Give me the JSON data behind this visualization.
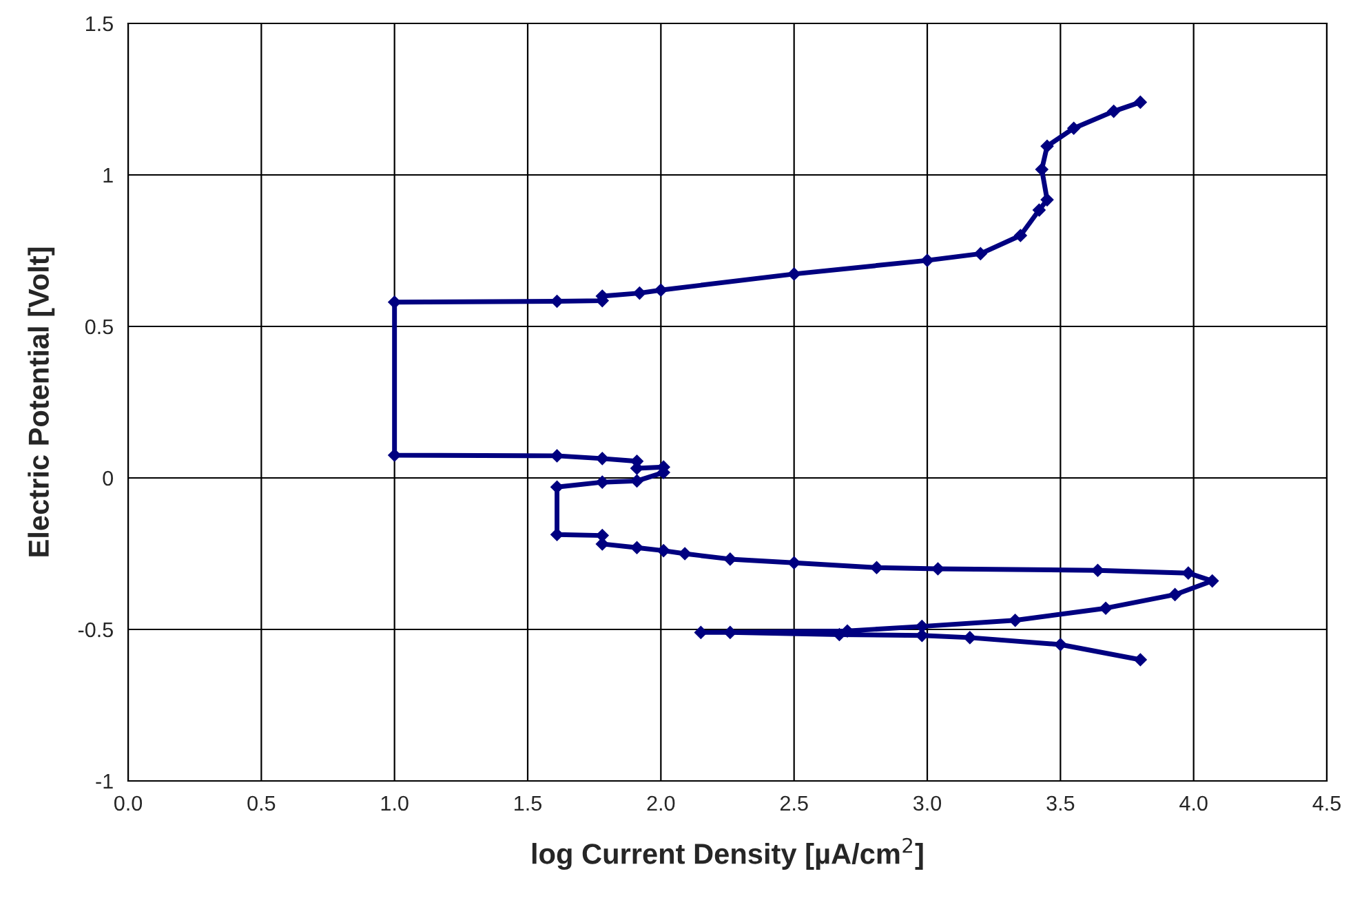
{
  "chart_data": {
    "type": "line",
    "xlabel": "log Current Density [µA/cm$^{2}$]",
    "ylabel": "Electric Potential [Volt]",
    "xlim": [
      0,
      4.5
    ],
    "xticks": [
      {
        "value": 0,
        "label": "0.0"
      },
      {
        "value": 0.5,
        "label": "0.5"
      },
      {
        "value": 1,
        "label": "1.0"
      },
      {
        "value": 1.5,
        "label": "1.5"
      },
      {
        "value": 2,
        "label": "2.0"
      },
      {
        "value": 2.5,
        "label": "2.5"
      },
      {
        "value": 3,
        "label": "3.0"
      },
      {
        "value": 3.5,
        "label": "3.5"
      },
      {
        "value": 4,
        "label": "4.0"
      },
      {
        "value": 4.5,
        "label": "4.5"
      }
    ],
    "ylim": [
      -1,
      1.5
    ],
    "yticks": [
      -1,
      -0.5,
      0,
      0.5,
      1,
      1.5
    ],
    "grid": true,
    "marker": "diamond",
    "line_style": "solid",
    "series": [
      {
        "color": "#000080",
        "x": [
          3.8,
          3.5,
          3.16,
          2.98,
          2.67,
          2.26,
          2.15,
          2.7,
          2.98,
          3.33,
          3.67,
          3.93,
          4.07,
          3.98,
          3.64,
          3.04,
          2.81,
          2.5,
          2.26,
          2.09,
          2.01,
          1.91,
          1.78,
          1.78,
          1.61,
          1.61,
          1.78,
          1.91,
          2.01,
          2.01,
          1.91,
          1.91,
          1.78,
          1.61,
          1.0,
          1.0,
          1.61,
          1.78,
          1.78,
          1.92,
          2.0,
          2.5,
          3.0,
          3.2,
          3.35,
          3.42,
          3.45,
          3.43,
          3.45,
          3.55,
          3.7,
          3.8
        ],
        "values": [
          -0.6,
          -0.55,
          -0.527,
          -0.52,
          -0.517,
          -0.51,
          -0.51,
          -0.505,
          -0.49,
          -0.47,
          -0.43,
          -0.385,
          -0.34,
          -0.314,
          -0.305,
          -0.3,
          -0.296,
          -0.28,
          -0.268,
          -0.25,
          -0.24,
          -0.23,
          -0.218,
          -0.19,
          -0.187,
          -0.03,
          -0.014,
          -0.01,
          0.018,
          0.036,
          0.032,
          0.055,
          0.064,
          0.073,
          0.075,
          0.58,
          0.583,
          0.585,
          0.6,
          0.61,
          0.62,
          0.673,
          0.718,
          0.74,
          0.8,
          0.884,
          0.918,
          1.018,
          1.095,
          1.154,
          1.21,
          1.24
        ]
      }
    ]
  }
}
